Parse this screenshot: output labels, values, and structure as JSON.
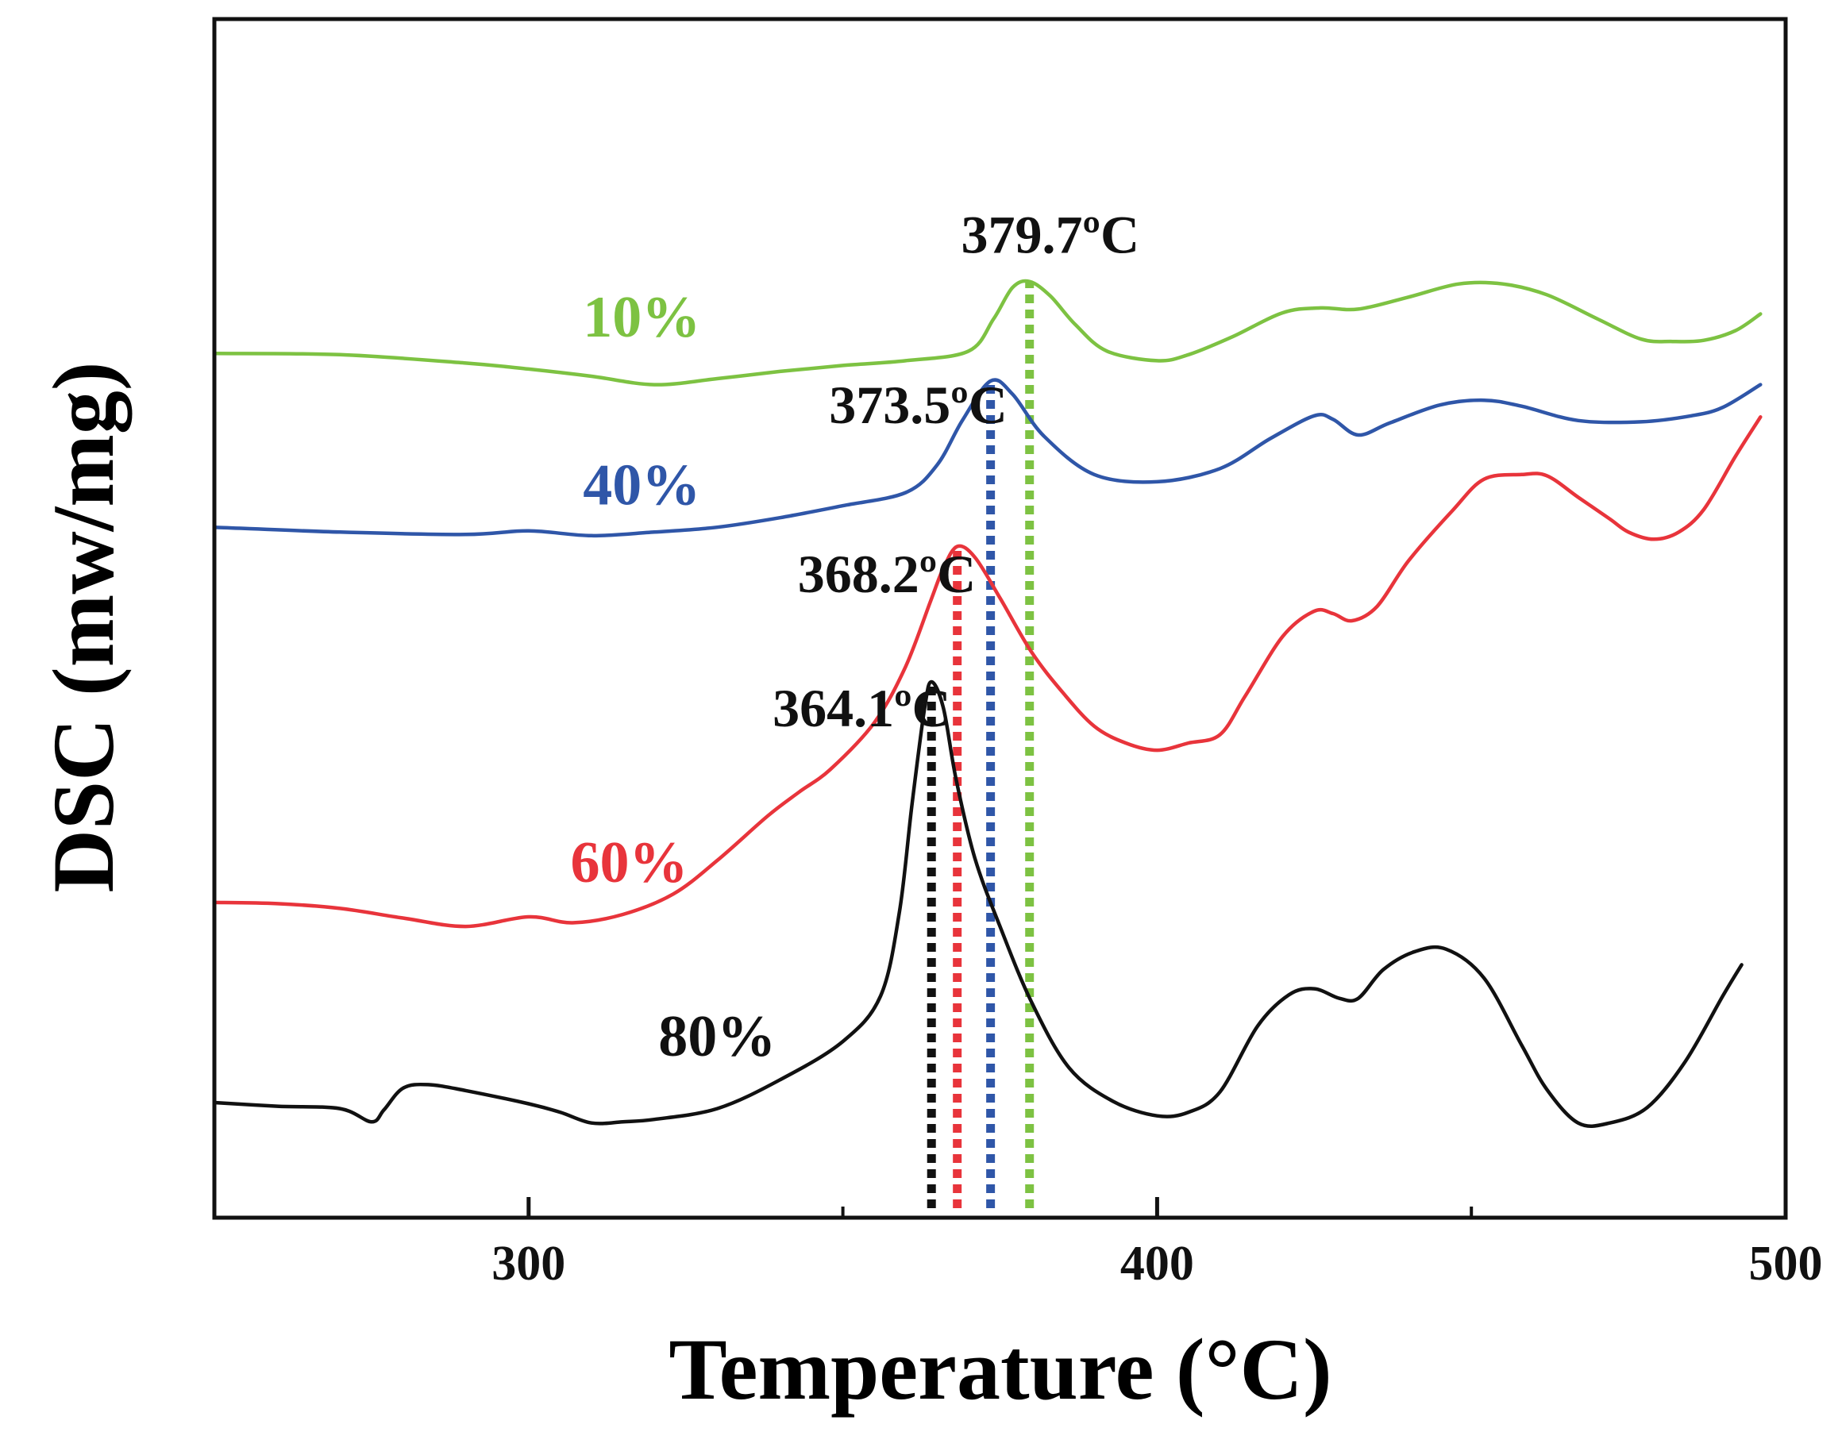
{
  "chart_data": {
    "type": "line",
    "xlabel": "Temperature (°C)",
    "ylabel": "DSC (mw/mg)",
    "xlim": [
      250,
      500
    ],
    "ylim": [
      0,
      100
    ],
    "x_ticks": [
      {
        "value": 300,
        "label": "300"
      },
      {
        "value": 400,
        "label": "400"
      },
      {
        "value": 500,
        "label": "500"
      }
    ],
    "x_minor_ticks": [
      350,
      450
    ],
    "series": [
      {
        "name": "10%",
        "color": "#7dc242",
        "peak": {
          "x": 379.7,
          "label": "379.7ºC"
        },
        "points": [
          [
            250,
            72.1
          ],
          [
            270,
            72.0
          ],
          [
            290,
            71.3
          ],
          [
            300,
            70.8
          ],
          [
            310,
            70.2
          ],
          [
            320,
            69.5
          ],
          [
            330,
            70.0
          ],
          [
            340,
            70.6
          ],
          [
            350,
            71.1
          ],
          [
            360,
            71.5
          ],
          [
            370,
            72.3
          ],
          [
            374,
            75.0
          ],
          [
            377,
            77.6
          ],
          [
            379.7,
            78.1
          ],
          [
            383,
            76.9
          ],
          [
            387,
            74.5
          ],
          [
            392,
            72.3
          ],
          [
            400,
            71.5
          ],
          [
            405,
            72.0
          ],
          [
            412,
            73.5
          ],
          [
            420,
            75.5
          ],
          [
            426,
            75.9
          ],
          [
            432,
            75.8
          ],
          [
            440,
            76.8
          ],
          [
            448,
            77.9
          ],
          [
            455,
            77.9
          ],
          [
            462,
            77.0
          ],
          [
            470,
            75.0
          ],
          [
            477,
            73.3
          ],
          [
            482,
            73.1
          ],
          [
            487,
            73.2
          ],
          [
            492,
            74.0
          ],
          [
            496,
            75.4
          ]
        ]
      },
      {
        "name": "40%",
        "color": "#2f56a8",
        "peak": {
          "x": 373.5,
          "label": "373.5ºC"
        },
        "points": [
          [
            250,
            57.6
          ],
          [
            270,
            57.2
          ],
          [
            290,
            57.0
          ],
          [
            300,
            57.3
          ],
          [
            310,
            56.9
          ],
          [
            320,
            57.2
          ],
          [
            330,
            57.6
          ],
          [
            340,
            58.4
          ],
          [
            350,
            59.4
          ],
          [
            360,
            60.5
          ],
          [
            365,
            62.8
          ],
          [
            369,
            66.5
          ],
          [
            373.5,
            69.8
          ],
          [
            377,
            68.7
          ],
          [
            382,
            65.2
          ],
          [
            390,
            62.0
          ],
          [
            400,
            61.4
          ],
          [
            410,
            62.5
          ],
          [
            418,
            65.0
          ],
          [
            425,
            66.9
          ],
          [
            428,
            66.6
          ],
          [
            432,
            65.3
          ],
          [
            437,
            66.3
          ],
          [
            445,
            67.8
          ],
          [
            452,
            68.2
          ],
          [
            458,
            67.7
          ],
          [
            467,
            66.5
          ],
          [
            477,
            66.4
          ],
          [
            485,
            66.9
          ],
          [
            490,
            67.6
          ],
          [
            496,
            69.5
          ]
        ]
      },
      {
        "name": "60%",
        "color": "#e8343b",
        "peak": {
          "x": 368.2,
          "label": "368.2ºC"
        },
        "points": [
          [
            250,
            26.3
          ],
          [
            260,
            26.2
          ],
          [
            270,
            25.8
          ],
          [
            280,
            25.0
          ],
          [
            290,
            24.3
          ],
          [
            300,
            25.1
          ],
          [
            307,
            24.6
          ],
          [
            315,
            25.3
          ],
          [
            323,
            27.0
          ],
          [
            330,
            29.8
          ],
          [
            338,
            33.5
          ],
          [
            343,
            35.5
          ],
          [
            348,
            37.4
          ],
          [
            355,
            41.3
          ],
          [
            360,
            46.0
          ],
          [
            364,
            51.5
          ],
          [
            366,
            54.2
          ],
          [
            368.2,
            56.0
          ],
          [
            371,
            55.1
          ],
          [
            375,
            51.7
          ],
          [
            380,
            47.2
          ],
          [
            385,
            43.8
          ],
          [
            390,
            41.0
          ],
          [
            395,
            39.6
          ],
          [
            400,
            39.0
          ],
          [
            405,
            39.6
          ],
          [
            410,
            40.3
          ],
          [
            414,
            43.5
          ],
          [
            420,
            48.5
          ],
          [
            425,
            50.6
          ],
          [
            428,
            50.4
          ],
          [
            431,
            49.8
          ],
          [
            435,
            51.0
          ],
          [
            440,
            54.8
          ],
          [
            447,
            59.0
          ],
          [
            452,
            61.6
          ],
          [
            458,
            62.0
          ],
          [
            462,
            61.9
          ],
          [
            467,
            60.1
          ],
          [
            472,
            58.3
          ],
          [
            475,
            57.2
          ],
          [
            479,
            56.6
          ],
          [
            483,
            57.2
          ],
          [
            487,
            59.1
          ],
          [
            492,
            63.5
          ],
          [
            496,
            66.8
          ]
        ]
      },
      {
        "name": "80%",
        "color": "#111111",
        "peak": {
          "x": 364.1,
          "label": "364.1ºC"
        },
        "points": [
          [
            250,
            9.6
          ],
          [
            260,
            9.3
          ],
          [
            270,
            9.1
          ],
          [
            275,
            8.0
          ],
          [
            277,
            9.0
          ],
          [
            280,
            10.8
          ],
          [
            284,
            11.1
          ],
          [
            290,
            10.6
          ],
          [
            300,
            9.5
          ],
          [
            305,
            8.8
          ],
          [
            310,
            7.9
          ],
          [
            315,
            8.0
          ],
          [
            320,
            8.2
          ],
          [
            330,
            9.1
          ],
          [
            340,
            11.5
          ],
          [
            350,
            14.7
          ],
          [
            356,
            18.5
          ],
          [
            359,
            25.5
          ],
          [
            361,
            34.5
          ],
          [
            363,
            42.5
          ],
          [
            364.1,
            44.7
          ],
          [
            366,
            42.5
          ],
          [
            368,
            36.6
          ],
          [
            371,
            30.0
          ],
          [
            375,
            24.3
          ],
          [
            380,
            18.0
          ],
          [
            386,
            12.5
          ],
          [
            393,
            9.7
          ],
          [
            400,
            8.5
          ],
          [
            405,
            8.8
          ],
          [
            410,
            10.5
          ],
          [
            416,
            16.0
          ],
          [
            421,
            18.6
          ],
          [
            425,
            19.1
          ],
          [
            429,
            18.3
          ],
          [
            432,
            18.3
          ],
          [
            436,
            20.7
          ],
          [
            441,
            22.2
          ],
          [
            446,
            22.4
          ],
          [
            452,
            20.0
          ],
          [
            458,
            14.4
          ],
          [
            462,
            10.7
          ],
          [
            467,
            7.9
          ],
          [
            472,
            7.9
          ],
          [
            478,
            9.2
          ],
          [
            484,
            13.0
          ],
          [
            490,
            18.5
          ],
          [
            493,
            21.1
          ]
        ]
      }
    ]
  }
}
